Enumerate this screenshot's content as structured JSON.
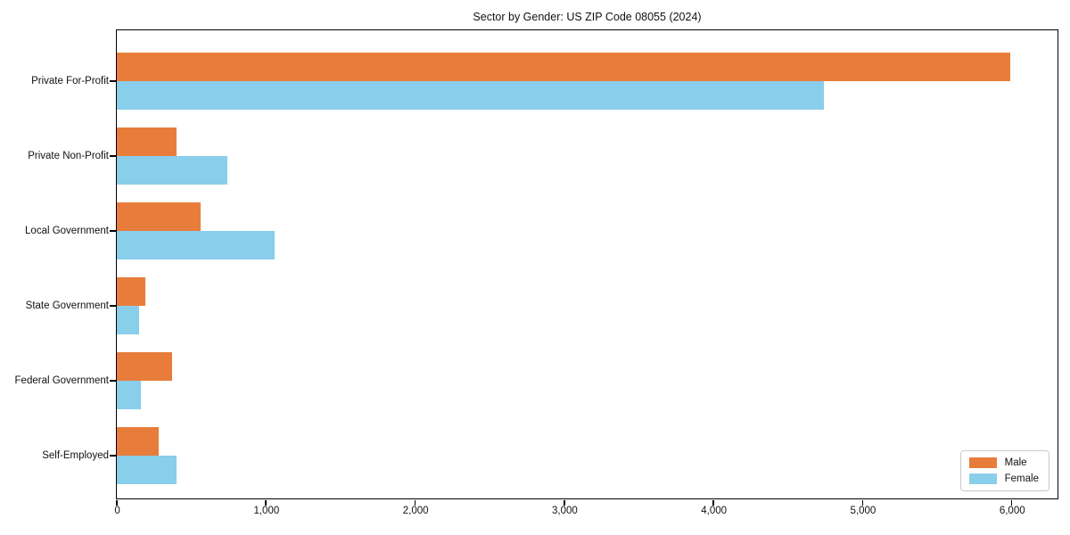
{
  "chart_data": {
    "type": "bar",
    "orientation": "horizontal",
    "title": "Sector by Gender: US ZIP Code 08055 (2024)",
    "xlabel": "",
    "ylabel": "",
    "grid": false,
    "categories": [
      "Private For-Profit",
      "Private Non-Profit",
      "Local Government",
      "State Government",
      "Federal Government",
      "Self-Employed"
    ],
    "series": [
      {
        "name": "Male",
        "color": "#E87D3B",
        "values": [
          5990,
          400,
          560,
          190,
          370,
          280
        ]
      },
      {
        "name": "Female",
        "color": "#89CEEA",
        "values": [
          4740,
          740,
          1060,
          150,
          160,
          400
        ]
      }
    ],
    "xlim": [
      0,
      6300
    ],
    "xticks": [
      {
        "value": 0,
        "label": "0"
      },
      {
        "value": 1000,
        "label": "1,000"
      },
      {
        "value": 2000,
        "label": "2,000"
      },
      {
        "value": 3000,
        "label": "3,000"
      },
      {
        "value": 4000,
        "label": "4,000"
      },
      {
        "value": 5000,
        "label": "5,000"
      },
      {
        "value": 6000,
        "label": "6,000"
      }
    ],
    "legend": {
      "position": "lower right"
    }
  }
}
